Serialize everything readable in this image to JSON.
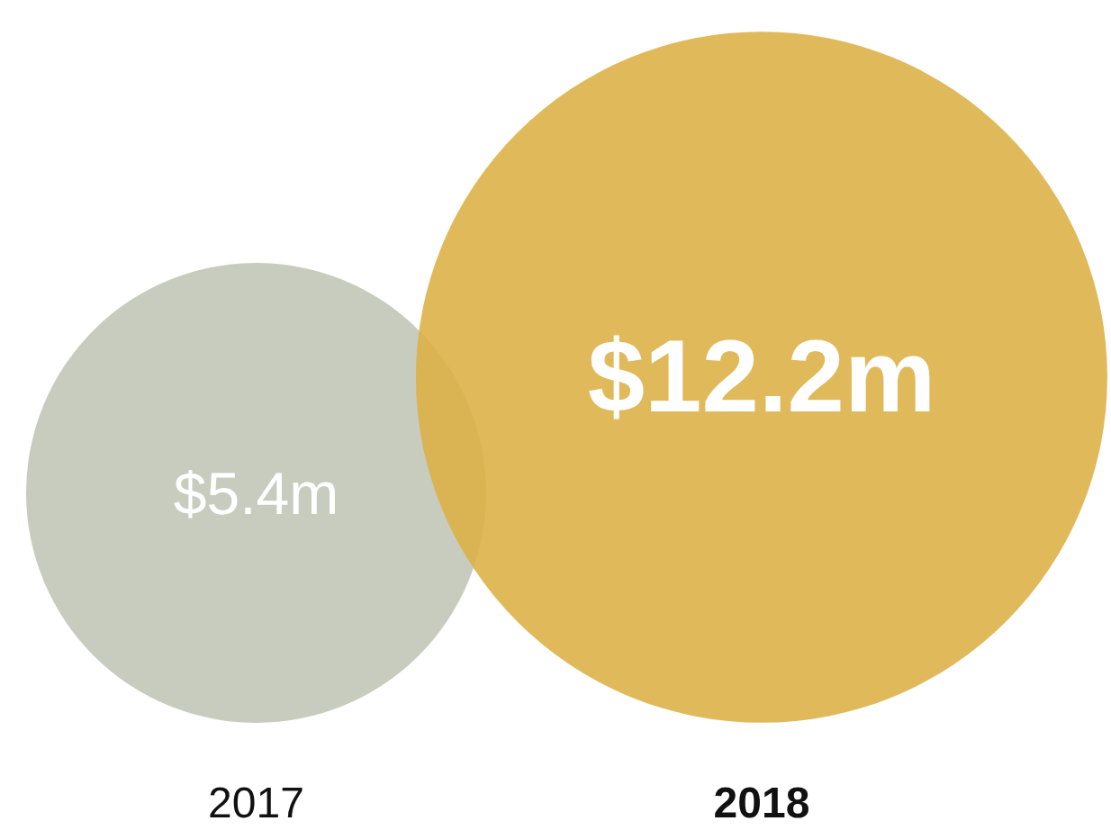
{
  "chart_data": {
    "type": "other",
    "categories": [
      "2017",
      "2018"
    ],
    "values": [
      5.4,
      12.2
    ],
    "value_labels": [
      "$5.4m",
      "$12.2m"
    ],
    "colors": [
      "#c0c5b5",
      "#dcaf44"
    ]
  }
}
